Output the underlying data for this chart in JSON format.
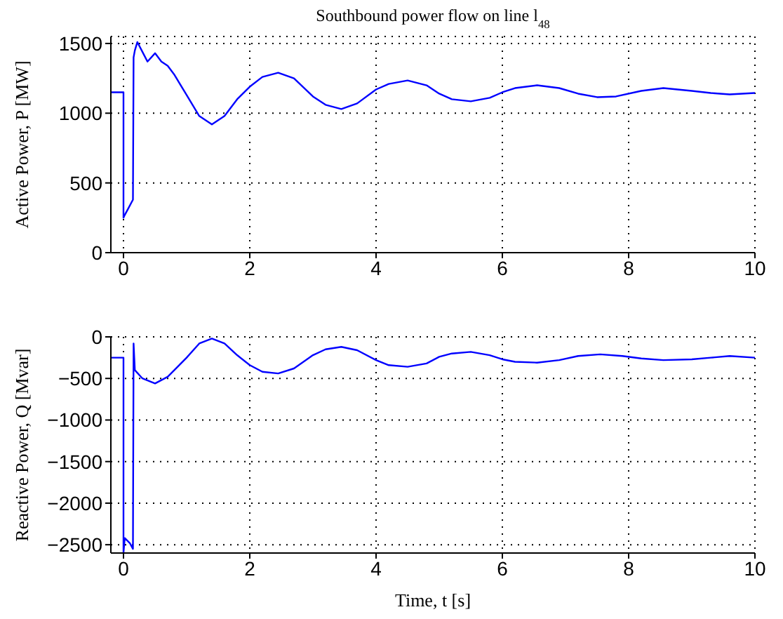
{
  "chart_data": [
    {
      "type": "line",
      "title": "Southbound power flow on line l$_{48}$",
      "ylabel": "Active Power, P [MW]",
      "x": [
        -0.2,
        0,
        0,
        0.02,
        0.08,
        0.15,
        0.16,
        0.18,
        0.22,
        0.3,
        0.38,
        0.5,
        0.6,
        0.7,
        0.8,
        1.0,
        1.2,
        1.4,
        1.6,
        1.8,
        2.0,
        2.2,
        2.45,
        2.7,
        3.0,
        3.2,
        3.45,
        3.7,
        4.0,
        4.2,
        4.5,
        4.8,
        5.0,
        5.2,
        5.5,
        5.8,
        6.0,
        6.2,
        6.55,
        6.9,
        7.2,
        7.5,
        7.8,
        8.2,
        8.55,
        9.0,
        9.3,
        9.6,
        10
      ],
      "series": [
        {
          "color": "#0000ff",
          "values": [
            1150,
            1150,
            250,
            270,
            320,
            380,
            1400,
            1450,
            1510,
            1440,
            1370,
            1430,
            1370,
            1340,
            1280,
            1130,
            980,
            920,
            980,
            1100,
            1190,
            1260,
            1290,
            1250,
            1120,
            1060,
            1030,
            1070,
            1170,
            1210,
            1235,
            1200,
            1140,
            1100,
            1085,
            1110,
            1150,
            1180,
            1200,
            1180,
            1140,
            1115,
            1120,
            1160,
            1180,
            1160,
            1145,
            1135,
            1145
          ]
        }
      ],
      "xlim": [
        -0.2,
        10
      ],
      "xticks": [
        0,
        2,
        4,
        6,
        8,
        10
      ],
      "ylim": [
        0,
        1550
      ],
      "yticks": [
        0,
        500,
        1000,
        1500
      ],
      "grid": true,
      "line_style": "solid"
    },
    {
      "type": "line",
      "xlabel": "Time, t [s]",
      "ylabel": "Reactive Power, Q [Mvar]",
      "x": [
        -0.2,
        0,
        0,
        0.02,
        0.1,
        0.15,
        0.16,
        0.18,
        0.3,
        0.5,
        0.7,
        1.0,
        1.2,
        1.4,
        1.6,
        1.8,
        2.0,
        2.2,
        2.45,
        2.7,
        3.0,
        3.2,
        3.45,
        3.7,
        4.0,
        4.2,
        4.5,
        4.8,
        5.0,
        5.2,
        5.5,
        5.8,
        6.0,
        6.2,
        6.55,
        6.9,
        7.2,
        7.55,
        7.9,
        8.2,
        8.55,
        9.0,
        9.3,
        9.6,
        10
      ],
      "series": [
        {
          "color": "#0000ff",
          "values": [
            -250,
            -250,
            -2600,
            -2420,
            -2480,
            -2550,
            -80,
            -400,
            -500,
            -560,
            -480,
            -250,
            -80,
            -20,
            -80,
            -220,
            -340,
            -420,
            -440,
            -380,
            -220,
            -150,
            -120,
            -160,
            -280,
            -340,
            -360,
            -320,
            -240,
            -200,
            -180,
            -220,
            -270,
            -300,
            -310,
            -280,
            -230,
            -210,
            -230,
            -260,
            -280,
            -270,
            -250,
            -230,
            -250
          ]
        }
      ],
      "xlim": [
        -0.2,
        10
      ],
      "xticks": [
        0,
        2,
        4,
        6,
        8,
        10
      ],
      "ylim": [
        -2600,
        0
      ],
      "yticks": [
        -2500,
        -2000,
        -1500,
        -1000,
        -500,
        0
      ],
      "grid": true,
      "line_style": "solid"
    }
  ]
}
